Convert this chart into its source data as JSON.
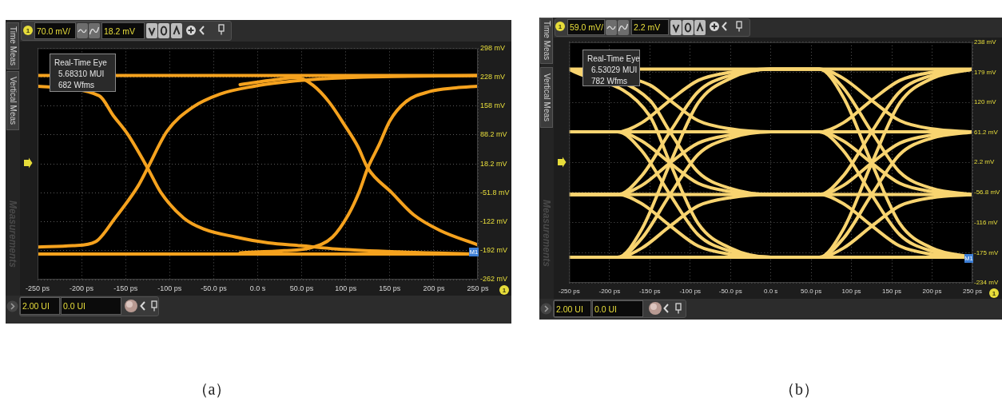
{
  "chart_data": [
    {
      "type": "line",
      "title": "（a）",
      "xlim": [
        -250,
        250
      ],
      "xticks": [
        {
          "value": -250,
          "label": "-250 ps"
        },
        {
          "value": -200,
          "label": "-200 ps"
        },
        {
          "value": -150,
          "label": "-150 ps"
        },
        {
          "value": -100,
          "label": "-100 ps"
        },
        {
          "value": -50,
          "label": "-50.0 ps"
        },
        {
          "value": 0,
          "label": "0.0 s"
        },
        {
          "value": 50,
          "label": "50.0 ps"
        },
        {
          "value": 100,
          "label": "100 ps"
        },
        {
          "value": 150,
          "label": "150 ps"
        },
        {
          "value": 200,
          "label": "200 ps"
        },
        {
          "value": 250,
          "label": "250 ps"
        }
      ],
      "ylim": [
        -262,
        298
      ],
      "yticks": [
        {
          "value": -262,
          "label": "-262 mV"
        },
        {
          "value": -192,
          "label": "-192 mV"
        },
        {
          "value": -122,
          "label": "-122 mV"
        },
        {
          "value": -51.8,
          "label": "-51.8 mV"
        },
        {
          "value": 18.2,
          "label": "18.2 mV"
        },
        {
          "value": 88.2,
          "label": "88.2 mV"
        },
        {
          "value": 158,
          "label": "158 mV"
        },
        {
          "value": 228,
          "label": "228 mV"
        },
        {
          "value": 298,
          "label": "298 mV"
        }
      ],
      "grid": true,
      "marker": "none",
      "annotations": [
        "Real-Time Eye",
        "5.68310 MUI",
        "682 Wfms",
        "70.0 mV/",
        "18.2 mV",
        "2.00 UI",
        "0.0 UI",
        "Time Meas",
        "Vertical Meas",
        "Measurements",
        "M1",
        "1"
      ],
      "series": [
        {
          "color": "#f5a21e",
          "x": [
            -250,
            250
          ],
          "values": [
            232,
            232
          ]
        },
        {
          "color": "#f5a21e",
          "x": [
            -250,
            250
          ],
          "values": [
            -200,
            -200
          ]
        },
        {
          "color": "#f5a21e",
          "x": [
            -250,
            -210,
            -184,
            -162,
            -136,
            -125,
            -103,
            -74,
            -43,
            -4,
            30,
            54,
            120,
            250
          ],
          "values": [
            -183,
            -180,
            -170,
            -113,
            -36,
            8,
            97,
            155,
            187,
            206,
            216,
            221,
            228,
            232
          ]
        },
        {
          "color": "#f5a21e",
          "x": [
            -250,
            -180,
            -164,
            -148,
            -125,
            -110,
            -84,
            -62,
            -25,
            12,
            49,
            90,
            160,
            250
          ],
          "values": [
            206,
            183,
            135,
            91,
            8,
            -51,
            -113,
            -139,
            -159,
            -173,
            -180,
            -188,
            -195,
            -200
          ]
        },
        {
          "color": "#f5a21e",
          "x": [
            -20,
            30,
            59,
            85,
            103,
            115,
            125,
            138,
            150,
            168,
            195,
            225,
            250
          ],
          "values": [
            -197,
            -192,
            -186,
            -159,
            -105,
            -51,
            8,
            65,
            122,
            168,
            193,
            202,
            206
          ]
        },
        {
          "color": "#f5a21e",
          "x": [
            -20,
            20,
            45,
            63,
            81,
            99,
            114,
            125,
            152,
            177,
            207,
            250
          ],
          "values": [
            210,
            222,
            227,
            208,
            168,
            111,
            59,
            8,
            -51,
            -105,
            -143,
            -178
          ]
        }
      ]
    },
    {
      "type": "line",
      "title": "（b）",
      "x": [
        -250,
        -190,
        -160,
        -125,
        -90,
        -50,
        0,
        60,
        90,
        125,
        160,
        200,
        250
      ],
      "xlim": [
        -250,
        250
      ],
      "xticks": [
        {
          "value": -250,
          "label": "-250 ps"
        },
        {
          "value": -200,
          "label": "-200 ps"
        },
        {
          "value": -150,
          "label": "-150 ps"
        },
        {
          "value": -100,
          "label": "-100 ps"
        },
        {
          "value": -50,
          "label": "-50.0 ps"
        },
        {
          "value": 0,
          "label": "0.0 s"
        },
        {
          "value": 50,
          "label": "50.0 ps"
        },
        {
          "value": 100,
          "label": "100 ps"
        },
        {
          "value": 150,
          "label": "150 ps"
        },
        {
          "value": 200,
          "label": "200 ps"
        },
        {
          "value": 250,
          "label": "250 ps"
        }
      ],
      "ylim": [
        -234,
        238
      ],
      "yticks": [
        {
          "value": -234,
          "label": "-234 mV"
        },
        {
          "value": -175,
          "label": "-175 mV"
        },
        {
          "value": -116,
          "label": "-116 mV"
        },
        {
          "value": -56.8,
          "label": "-56.8 mV"
        },
        {
          "value": 2.2,
          "label": "2.2 mV"
        },
        {
          "value": 61.2,
          "label": "61.2 mV"
        },
        {
          "value": 120,
          "label": "120 mV"
        },
        {
          "value": 179,
          "label": "179 mV"
        },
        {
          "value": 238,
          "label": "238 mV"
        }
      ],
      "grid": true,
      "marker": "none",
      "annotations": [
        "Real-Time Eye",
        "6.53029 MUI",
        "782 Wfms",
        "59.0 mV/",
        "2.2 mV",
        "2.00 UI",
        "0.0 UI",
        "Time Meas",
        "Vertical Meas",
        "Measurements",
        "M1",
        "1"
      ],
      "series": [
        {
          "color": "#f8d470",
          "x": [
            -250,
            250
          ],
          "values": [
            185,
            185
          ]
        },
        {
          "color": "#f8d470",
          "x": [
            -250,
            250
          ],
          "values": [
            62,
            62
          ]
        },
        {
          "color": "#f8d470",
          "x": [
            -250,
            250
          ],
          "values": [
            -61,
            -61
          ]
        },
        {
          "color": "#f8d470",
          "x": [
            -250,
            250
          ],
          "values": [
            -184,
            -184
          ]
        },
        {
          "color": "#f8d470",
          "values": [
            -61,
            -61,
            -79,
            -122,
            -162,
            -178,
            -184,
            -184,
            -147,
            -61,
            18,
            50,
            62
          ]
        },
        {
          "color": "#f8d470",
          "values": [
            62,
            62,
            25,
            -61,
            -140,
            -172,
            -184,
            -184,
            -129,
            0,
            119,
            167,
            185
          ]
        },
        {
          "color": "#f8d470",
          "x": [
            -250,
            -150,
            -125,
            -90,
            -50,
            0,
            60,
            90,
            125,
            160,
            200,
            250
          ],
          "values": [
            185,
            93,
            1,
            -118,
            -166,
            -184,
            -184,
            -166,
            -123,
            -83,
            -67,
            -61
          ]
        },
        {
          "color": "#f8d470",
          "values": [
            -184,
            -184,
            -166,
            -123,
            -83,
            -67,
            -61,
            -61,
            -24,
            62,
            141,
            173,
            185
          ]
        },
        {
          "color": "#f8d470",
          "values": [
            62,
            62,
            44,
            1,
            -39,
            -55,
            -61,
            -61,
            -79,
            -122,
            -162,
            -178,
            -184
          ]
        },
        {
          "color": "#f8d470",
          "x": [
            -250,
            -150,
            -125,
            -90,
            -50,
            0,
            60,
            90,
            125,
            160,
            200,
            250
          ],
          "values": [
            185,
            124,
            62,
            -17,
            -49,
            -61,
            -61,
            -43,
            1,
            40,
            56,
            62
          ]
        },
        {
          "color": "#f8d470",
          "values": [
            -184,
            -184,
            -147,
            -61,
            18,
            50,
            62,
            62,
            44,
            1,
            -39,
            -55,
            -61
          ]
        },
        {
          "color": "#f8d470",
          "values": [
            -61,
            -61,
            -43,
            1,
            40,
            56,
            62,
            62,
            80,
            124,
            163,
            179,
            185
          ]
        },
        {
          "color": "#f8d470",
          "x": [
            -250,
            -150,
            -125,
            -90,
            -50,
            0,
            60,
            90,
            125,
            160,
            200,
            250
          ],
          "values": [
            185,
            154,
            124,
            84,
            68,
            62,
            62,
            25,
            -61,
            -140,
            -172,
            -184
          ]
        },
        {
          "color": "#f8d470",
          "values": [
            -184,
            -184,
            -129,
            0,
            119,
            167,
            185,
            185,
            167,
            124,
            84,
            68,
            62
          ]
        },
        {
          "color": "#f8d470",
          "values": [
            -61,
            -61,
            -24,
            62,
            141,
            173,
            185,
            185,
            130,
            1,
            -118,
            -166,
            -184
          ]
        },
        {
          "color": "#f8d470",
          "values": [
            62,
            62,
            80,
            124,
            163,
            179,
            185,
            185,
            148,
            62,
            -17,
            -49,
            -61
          ]
        }
      ]
    }
  ]
}
